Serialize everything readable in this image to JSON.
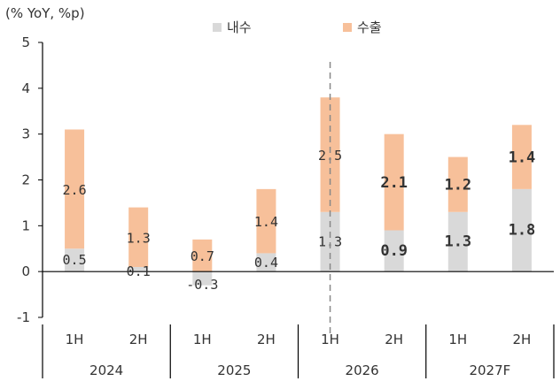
{
  "chart_data": {
    "type": "bar",
    "stacked": true,
    "ylabel": "(% YoY, %p)",
    "ylim": [
      -1,
      5
    ],
    "yticks": [
      -1,
      0,
      1,
      2,
      3,
      4,
      5
    ],
    "categories": [
      "1H",
      "2H",
      "1H",
      "2H",
      "1H",
      "2H",
      "1H",
      "2H"
    ],
    "groups": [
      "2024",
      "2025",
      "2026",
      "2027F"
    ],
    "series": [
      {
        "name": "내수",
        "color": "#d9d9d9",
        "values": [
          0.5,
          0.1,
          -0.3,
          0.4,
          1.3,
          0.9,
          1.3,
          1.8
        ],
        "labels": [
          "0.5",
          "0.1",
          "-0.3",
          "0.4",
          "1.3",
          "0.9",
          "1.3",
          "1.8"
        ]
      },
      {
        "name": "수출",
        "color": "#f7c09a",
        "values": [
          2.6,
          1.3,
          0.7,
          1.4,
          2.5,
          2.1,
          1.2,
          1.4
        ],
        "labels": [
          "2.6",
          "1.3",
          "0.7",
          "1.4",
          "2.5",
          "2.1",
          "1.2",
          "1.4"
        ]
      }
    ],
    "forecast_divider_after_index": 4,
    "legend_position": "top-center",
    "grid": false
  }
}
